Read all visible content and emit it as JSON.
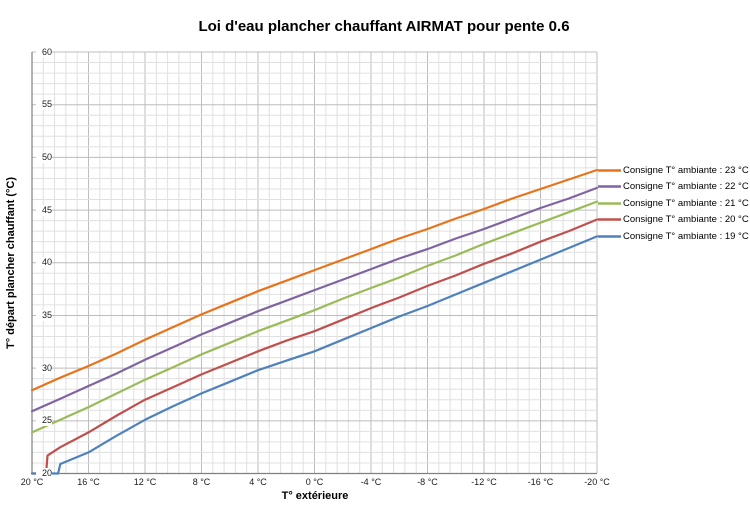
{
  "chart_data": {
    "type": "line",
    "title": "Loi d'eau plancher chauffant AIRMAT pour pente 0.6",
    "xlabel": "T° extérieure",
    "ylabel": "T° départ plancher chauffant (°C)",
    "x_range": [
      20,
      -20
    ],
    "y_range": [
      20,
      60
    ],
    "x_major_step": 4,
    "x_minor_step": 0.8,
    "y_major_step": 5,
    "y_minor_step": 1,
    "grid": {
      "minor_color": "#E0E0E0",
      "major_color": "#BDBDBD",
      "axis_color": "#7F7F7F"
    },
    "legend_position": "right",
    "x_ticks": [
      {
        "value": 20,
        "label": "20 °C"
      },
      {
        "value": 16,
        "label": "16 °C"
      },
      {
        "value": 12,
        "label": "12 °C"
      },
      {
        "value": 8,
        "label": "8 °C"
      },
      {
        "value": 4,
        "label": "4 °C"
      },
      {
        "value": 0,
        "label": "0 °C"
      },
      {
        "value": -4,
        "label": "-4 °C"
      },
      {
        "value": -8,
        "label": "-8 °C"
      },
      {
        "value": -12,
        "label": "-12 °C"
      },
      {
        "value": -16,
        "label": "-16 °C"
      },
      {
        "value": -20,
        "label": "-20 °C"
      }
    ],
    "y_ticks": [
      {
        "value": 20,
        "label": "20"
      },
      {
        "value": 25,
        "label": "25"
      },
      {
        "value": 30,
        "label": "30"
      },
      {
        "value": 35,
        "label": "35"
      },
      {
        "value": 40,
        "label": "40"
      },
      {
        "value": 45,
        "label": "45"
      },
      {
        "value": 50,
        "label": "50"
      },
      {
        "value": 55,
        "label": "55"
      },
      {
        "value": 60,
        "label": "60"
      }
    ],
    "series": [
      {
        "label": "Consigne T° ambiante : 23 °C",
        "consigne": 23,
        "color": "#E8731B",
        "points": [
          [
            20,
            27.9
          ],
          [
            18,
            29.1
          ],
          [
            16,
            30.2
          ],
          [
            14,
            31.4
          ],
          [
            12,
            32.7
          ],
          [
            10,
            33.9
          ],
          [
            8,
            35.1
          ],
          [
            6,
            36.2
          ],
          [
            4,
            37.3
          ],
          [
            2,
            38.3
          ],
          [
            0,
            39.3
          ],
          [
            -2,
            40.3
          ],
          [
            -4,
            41.3
          ],
          [
            -6,
            42.3
          ],
          [
            -8,
            43.2
          ],
          [
            -10,
            44.2
          ],
          [
            -12,
            45.1
          ],
          [
            -14,
            46.1
          ],
          [
            -16,
            47.0
          ],
          [
            -18,
            47.9
          ],
          [
            -20,
            48.8
          ]
        ]
      },
      {
        "label": "Consigne T° ambiante : 22 °C",
        "consigne": 22,
        "color": "#8064A2",
        "points": [
          [
            20,
            25.9
          ],
          [
            18,
            27.1
          ],
          [
            16,
            28.3
          ],
          [
            14,
            29.5
          ],
          [
            12,
            30.8
          ],
          [
            10,
            32.0
          ],
          [
            8,
            33.2
          ],
          [
            6,
            34.3
          ],
          [
            4,
            35.4
          ],
          [
            2,
            36.4
          ],
          [
            0,
            37.4
          ],
          [
            -2,
            38.4
          ],
          [
            -4,
            39.4
          ],
          [
            -6,
            40.4
          ],
          [
            -8,
            41.3
          ],
          [
            -10,
            42.3
          ],
          [
            -12,
            43.2
          ],
          [
            -14,
            44.2
          ],
          [
            -16,
            45.2
          ],
          [
            -18,
            46.1
          ],
          [
            -20,
            47.1
          ]
        ]
      },
      {
        "label": "Consigne T° ambiante : 21 °C",
        "consigne": 21,
        "color": "#9BBB59",
        "points": [
          [
            20,
            23.9
          ],
          [
            18,
            25.1
          ],
          [
            16,
            26.3
          ],
          [
            14,
            27.6
          ],
          [
            12,
            28.9
          ],
          [
            10,
            30.1
          ],
          [
            8,
            31.3
          ],
          [
            6,
            32.4
          ],
          [
            4,
            33.5
          ],
          [
            2,
            34.5
          ],
          [
            0,
            35.5
          ],
          [
            -2,
            36.6
          ],
          [
            -4,
            37.6
          ],
          [
            -6,
            38.6
          ],
          [
            -8,
            39.7
          ],
          [
            -10,
            40.7
          ],
          [
            -12,
            41.8
          ],
          [
            -14,
            42.8
          ],
          [
            -16,
            43.8
          ],
          [
            -18,
            44.8
          ],
          [
            -20,
            45.8
          ]
        ]
      },
      {
        "label": "Consigne T° ambiante : 20 °C",
        "consigne": 20,
        "color": "#C0504D",
        "points": [
          [
            20,
            20
          ],
          [
            19,
            20
          ],
          [
            18.9,
            21.7
          ],
          [
            18,
            22.5
          ],
          [
            16,
            23.9
          ],
          [
            14,
            25.5
          ],
          [
            12,
            27.0
          ],
          [
            10,
            28.2
          ],
          [
            8,
            29.4
          ],
          [
            6,
            30.5
          ],
          [
            4,
            31.6
          ],
          [
            2,
            32.6
          ],
          [
            0,
            33.5
          ],
          [
            -2,
            34.6
          ],
          [
            -4,
            35.7
          ],
          [
            -6,
            36.7
          ],
          [
            -8,
            37.8
          ],
          [
            -10,
            38.8
          ],
          [
            -12,
            39.9
          ],
          [
            -14,
            40.9
          ],
          [
            -16,
            42.0
          ],
          [
            -18,
            43.0
          ],
          [
            -20,
            44.1
          ]
        ]
      },
      {
        "label": "Consigne T° ambiante : 19 °C",
        "consigne": 19,
        "color": "#4F81BD",
        "points": [
          [
            20,
            20
          ],
          [
            18.15,
            20
          ],
          [
            18,
            20.9
          ],
          [
            16,
            22.0
          ],
          [
            14,
            23.6
          ],
          [
            12,
            25.1
          ],
          [
            10,
            26.4
          ],
          [
            8,
            27.6
          ],
          [
            6,
            28.7
          ],
          [
            4,
            29.8
          ],
          [
            2,
            30.7
          ],
          [
            0,
            31.6
          ],
          [
            -2,
            32.7
          ],
          [
            -4,
            33.8
          ],
          [
            -6,
            34.9
          ],
          [
            -8,
            35.9
          ],
          [
            -10,
            37.0
          ],
          [
            -12,
            38.1
          ],
          [
            -14,
            39.2
          ],
          [
            -16,
            40.3
          ],
          [
            -18,
            41.4
          ],
          [
            -20,
            42.5
          ]
        ]
      }
    ]
  }
}
